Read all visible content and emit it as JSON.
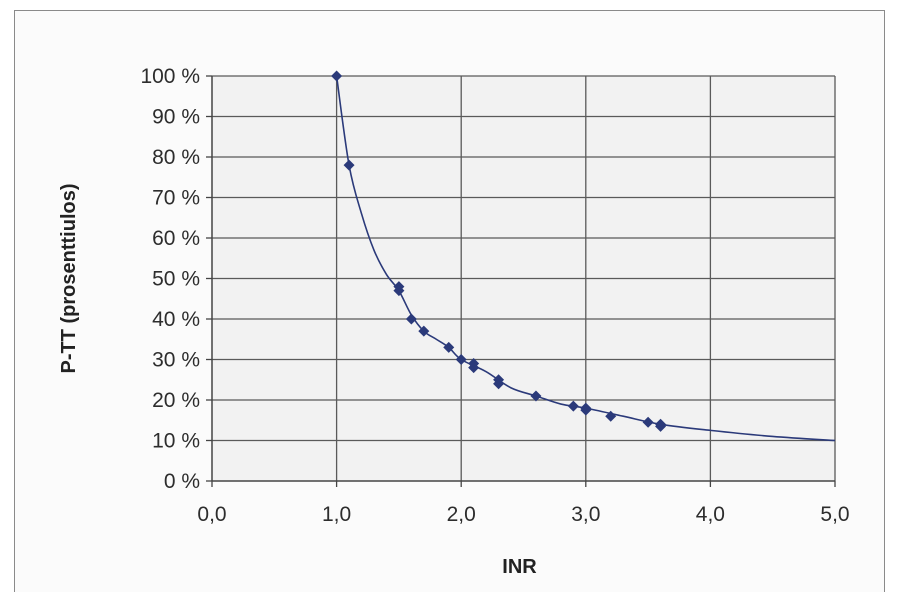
{
  "chart_data": {
    "type": "scatter",
    "xlabel": "INR",
    "ylabel": "P-TT (prosenttiulos)",
    "xlim": [
      0,
      5
    ],
    "ylim": [
      0,
      100
    ],
    "x_ticks": [
      "0,0",
      "1,0",
      "2,0",
      "3,0",
      "4,0",
      "5,0"
    ],
    "x_tick_values": [
      0,
      1,
      2,
      3,
      4,
      5
    ],
    "y_ticks": [
      "0 %",
      "10 %",
      "20 %",
      "30 %",
      "40 %",
      "50 %",
      "60 %",
      "70 %",
      "80 %",
      "90 %",
      "100 %"
    ],
    "y_tick_values": [
      0,
      10,
      20,
      30,
      40,
      50,
      60,
      70,
      80,
      90,
      100
    ],
    "grid": true,
    "colors": {
      "series": "#2b3a7a",
      "grid": "#5a5a5a",
      "plot_bg": "#f2f2f2"
    },
    "points": [
      {
        "x": 1.0,
        "y": 100
      },
      {
        "x": 1.1,
        "y": 78
      },
      {
        "x": 1.5,
        "y": 48
      },
      {
        "x": 1.5,
        "y": 47
      },
      {
        "x": 1.6,
        "y": 40
      },
      {
        "x": 1.7,
        "y": 37
      },
      {
        "x": 1.9,
        "y": 33
      },
      {
        "x": 2.0,
        "y": 30
      },
      {
        "x": 2.1,
        "y": 29
      },
      {
        "x": 2.1,
        "y": 28
      },
      {
        "x": 2.3,
        "y": 25
      },
      {
        "x": 2.3,
        "y": 24
      },
      {
        "x": 2.6,
        "y": 21
      },
      {
        "x": 2.9,
        "y": 18.5
      },
      {
        "x": 3.0,
        "y": 18
      },
      {
        "x": 3.0,
        "y": 17.5
      },
      {
        "x": 3.2,
        "y": 16
      },
      {
        "x": 3.5,
        "y": 14.5
      },
      {
        "x": 3.6,
        "y": 14
      },
      {
        "x": 3.6,
        "y": 13.5
      }
    ],
    "curve": {
      "x": [
        1.0,
        1.1,
        1.2,
        1.3,
        1.4,
        1.5,
        1.6,
        1.7,
        1.8,
        1.9,
        2.0,
        2.2,
        2.4,
        2.6,
        2.8,
        3.0,
        3.3,
        3.6,
        4.0,
        4.5,
        5.0
      ],
      "y": [
        100,
        78,
        66,
        57,
        51,
        47,
        41,
        37,
        35,
        33,
        30,
        27,
        23,
        21,
        19,
        18,
        16,
        14,
        12.5,
        11,
        10
      ]
    }
  }
}
